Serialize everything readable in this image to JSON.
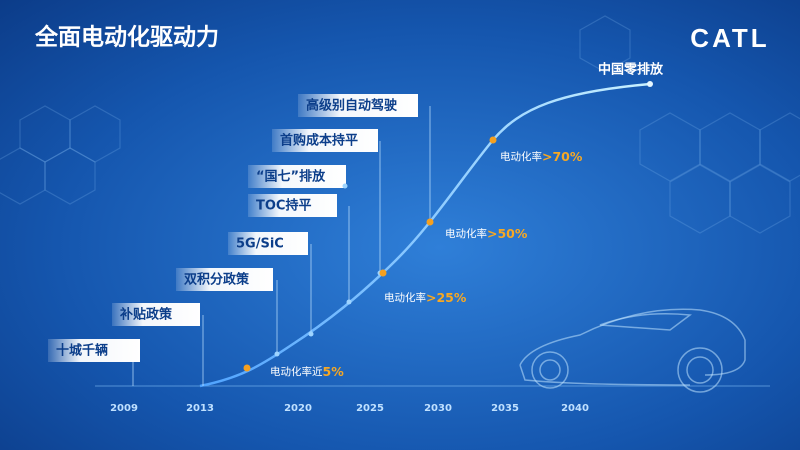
{
  "header": {
    "title": "全面电动化驱动力",
    "logo": "CATL"
  },
  "timeline": {
    "years": [
      "2009",
      "2013",
      "2020",
      "2025",
      "2030",
      "2035",
      "2040"
    ],
    "milestones": [
      "十城千辆",
      "补贴政策",
      "双积分政策",
      "5G/SiC",
      "TOC持平",
      "“国七”排放",
      "首购成本持平",
      "高级别自动驾驶"
    ],
    "rates": [
      {
        "label": "电动化率近",
        "value": "5%"
      },
      {
        "label": "电动化率",
        "value": ">25%"
      },
      {
        "label": "电动化率",
        "value": ">50%"
      },
      {
        "label": "电动化率",
        "value": ">70%"
      }
    ],
    "goal": "中国零排放"
  }
}
